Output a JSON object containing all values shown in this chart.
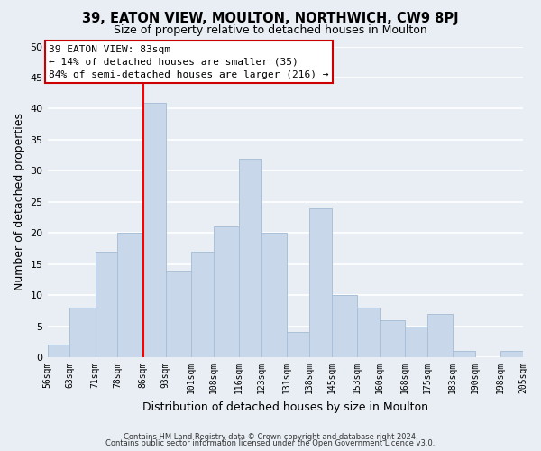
{
  "title": "39, EATON VIEW, MOULTON, NORTHWICH, CW9 8PJ",
  "subtitle": "Size of property relative to detached houses in Moulton",
  "xlabel": "Distribution of detached houses by size in Moulton",
  "ylabel": "Number of detached properties",
  "bar_color": "#c8d8ea",
  "bar_edge_color": "#aac0d8",
  "reference_line_x": 86,
  "reference_line_color": "red",
  "bins": [
    56,
    63,
    71,
    78,
    86,
    93,
    101,
    108,
    116,
    123,
    131,
    138,
    145,
    153,
    160,
    168,
    175,
    183,
    190,
    198,
    205
  ],
  "counts": [
    2,
    8,
    17,
    20,
    41,
    14,
    17,
    21,
    32,
    20,
    4,
    24,
    10,
    8,
    6,
    5,
    7,
    1,
    0,
    1
  ],
  "tick_labels": [
    "56sqm",
    "63sqm",
    "71sqm",
    "78sqm",
    "86sqm",
    "93sqm",
    "101sqm",
    "108sqm",
    "116sqm",
    "123sqm",
    "131sqm",
    "138sqm",
    "145sqm",
    "153sqm",
    "160sqm",
    "168sqm",
    "175sqm",
    "183sqm",
    "190sqm",
    "198sqm",
    "205sqm"
  ],
  "ylim": [
    0,
    50
  ],
  "yticks": [
    0,
    5,
    10,
    15,
    20,
    25,
    30,
    35,
    40,
    45,
    50
  ],
  "annotation_title": "39 EATON VIEW: 83sqm",
  "annotation_line1": "← 14% of detached houses are smaller (35)",
  "annotation_line2": "84% of semi-detached houses are larger (216) →",
  "annotation_box_color": "white",
  "annotation_box_edge": "#cc0000",
  "footer_line1": "Contains HM Land Registry data © Crown copyright and database right 2024.",
  "footer_line2": "Contains public sector information licensed under the Open Government Licence v3.0.",
  "background_color": "#e8eef4",
  "grid_color": "white",
  "title_fontsize": 10.5,
  "subtitle_fontsize": 9
}
